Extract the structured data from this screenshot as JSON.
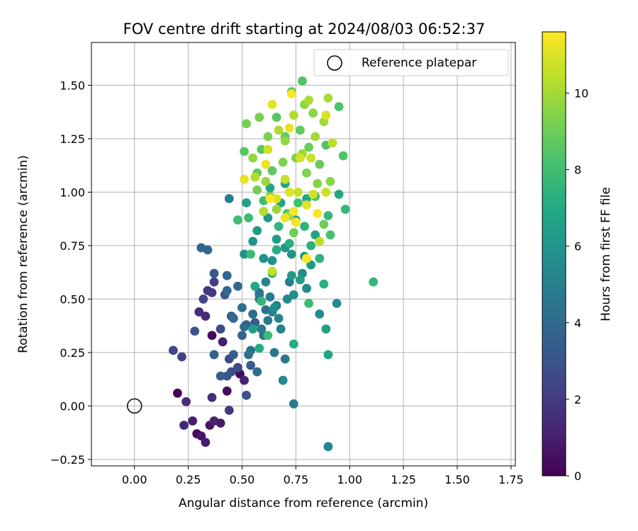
{
  "chart_data": {
    "type": "scatter",
    "title": "FOV centre drift starting at 2024/08/03 06:52:37",
    "xlabel": "Angular distance from reference (arcmin)",
    "ylabel": "Rotation from reference (arcmin)",
    "xlim": [
      -0.2,
      1.77
    ],
    "ylim": [
      -0.28,
      1.7
    ],
    "xticks": [
      "0.00",
      "0.25",
      "0.50",
      "0.75",
      "1.00",
      "1.25",
      "1.50",
      "1.75"
    ],
    "yticks": [
      "−0.25",
      "0.00",
      "0.25",
      "0.50",
      "0.75",
      "1.00",
      "1.25",
      "1.50"
    ],
    "grid": true,
    "legend": {
      "placement": "upper-right",
      "entries": [
        "Reference platepar"
      ]
    },
    "reference_point": {
      "x": 0.0,
      "y": 0.0,
      "label": "Reference platepar"
    },
    "colorbar": {
      "label": "Hours from first FF file",
      "min": 0,
      "max": 11.6,
      "ticks": [
        "0",
        "2",
        "4",
        "6",
        "8",
        "10"
      ],
      "colormap": "viridis"
    },
    "points": [
      {
        "x": 0.2,
        "y": 0.06,
        "h": 0.1
      },
      {
        "x": 0.29,
        "y": -0.13,
        "h": 0.3
      },
      {
        "x": 0.36,
        "y": 0.33,
        "h": 0.2
      },
      {
        "x": 0.43,
        "y": 0.07,
        "h": 0.4
      },
      {
        "x": 0.49,
        "y": 0.15,
        "h": 0.3
      },
      {
        "x": 0.35,
        "y": -0.09,
        "h": 0.6
      },
      {
        "x": 0.31,
        "y": -0.14,
        "h": 0.7
      },
      {
        "x": 0.4,
        "y": -0.08,
        "h": 0.8
      },
      {
        "x": 0.33,
        "y": -0.17,
        "h": 0.9
      },
      {
        "x": 0.27,
        "y": -0.07,
        "h": 1.0
      },
      {
        "x": 0.41,
        "y": 0.3,
        "h": 1.0
      },
      {
        "x": 0.37,
        "y": -0.07,
        "h": 1.1
      },
      {
        "x": 0.51,
        "y": 0.12,
        "h": 1.2
      },
      {
        "x": 0.23,
        "y": -0.09,
        "h": 1.3
      },
      {
        "x": 0.24,
        "y": 0.02,
        "h": 1.4
      },
      {
        "x": 0.33,
        "y": 0.42,
        "h": 1.4
      },
      {
        "x": 0.3,
        "y": 0.44,
        "h": 1.5
      },
      {
        "x": 0.36,
        "y": 0.04,
        "h": 1.6
      },
      {
        "x": 0.44,
        "y": -0.02,
        "h": 1.8
      },
      {
        "x": 0.34,
        "y": 0.54,
        "h": 1.8
      },
      {
        "x": 0.36,
        "y": 0.53,
        "h": 2.0
      },
      {
        "x": 0.37,
        "y": 0.58,
        "h": 2.1
      },
      {
        "x": 0.22,
        "y": 0.23,
        "h": 2.3
      },
      {
        "x": 0.18,
        "y": 0.26,
        "h": 2.4
      },
      {
        "x": 0.32,
        "y": 0.5,
        "h": 2.5
      },
      {
        "x": 0.4,
        "y": 0.36,
        "h": 2.6
      },
      {
        "x": 0.44,
        "y": 0.22,
        "h": 2.7
      },
      {
        "x": 0.48,
        "y": 0.18,
        "h": 2.8
      },
      {
        "x": 0.45,
        "y": 0.16,
        "h": 2.8
      },
      {
        "x": 0.52,
        "y": 0.05,
        "h": 2.9
      },
      {
        "x": 0.43,
        "y": 0.14,
        "h": 3.0
      },
      {
        "x": 0.28,
        "y": 0.35,
        "h": 3.0
      },
      {
        "x": 0.37,
        "y": 0.62,
        "h": 3.1
      },
      {
        "x": 0.42,
        "y": 0.52,
        "h": 3.2
      },
      {
        "x": 0.54,
        "y": 0.19,
        "h": 3.3
      },
      {
        "x": 0.56,
        "y": 0.39,
        "h": 3.4
      },
      {
        "x": 0.4,
        "y": 0.14,
        "h": 3.4
      },
      {
        "x": 0.45,
        "y": 0.42,
        "h": 3.5
      },
      {
        "x": 0.46,
        "y": 0.24,
        "h": 3.5
      },
      {
        "x": 0.5,
        "y": 0.33,
        "h": 3.6
      },
      {
        "x": 0.37,
        "y": 0.24,
        "h": 3.6
      },
      {
        "x": 0.52,
        "y": 0.38,
        "h": 3.7
      },
      {
        "x": 0.31,
        "y": 0.74,
        "h": 3.7
      },
      {
        "x": 0.34,
        "y": 0.73,
        "h": 3.8
      },
      {
        "x": 0.43,
        "y": 0.61,
        "h": 3.8
      },
      {
        "x": 0.48,
        "y": 0.56,
        "h": 3.9
      },
      {
        "x": 0.43,
        "y": 0.54,
        "h": 3.9
      },
      {
        "x": 0.46,
        "y": 0.41,
        "h": 4.0
      },
      {
        "x": 0.51,
        "y": 0.37,
        "h": 4.0
      },
      {
        "x": 0.53,
        "y": 0.24,
        "h": 4.1
      },
      {
        "x": 0.57,
        "y": 0.16,
        "h": 4.1
      },
      {
        "x": 0.6,
        "y": 0.33,
        "h": 4.2
      },
      {
        "x": 0.55,
        "y": 0.43,
        "h": 4.2
      },
      {
        "x": 0.58,
        "y": 0.52,
        "h": 4.3
      },
      {
        "x": 0.61,
        "y": 0.45,
        "h": 4.3
      },
      {
        "x": 0.5,
        "y": 0.46,
        "h": 4.4
      },
      {
        "x": 0.54,
        "y": 0.26,
        "h": 4.4
      },
      {
        "x": 0.58,
        "y": 0.53,
        "h": 4.5
      },
      {
        "x": 0.65,
        "y": 0.25,
        "h": 4.5
      },
      {
        "x": 0.7,
        "y": 0.22,
        "h": 4.6
      },
      {
        "x": 0.62,
        "y": 0.4,
        "h": 4.6
      },
      {
        "x": 0.66,
        "y": 0.47,
        "h": 4.7
      },
      {
        "x": 0.59,
        "y": 0.36,
        "h": 4.7
      },
      {
        "x": 0.63,
        "y": 0.51,
        "h": 4.8
      },
      {
        "x": 0.72,
        "y": 0.58,
        "h": 4.8
      },
      {
        "x": 0.74,
        "y": 0.01,
        "h": 4.9
      },
      {
        "x": 0.44,
        "y": 0.97,
        "h": 4.9
      },
      {
        "x": 0.58,
        "y": 0.5,
        "h": 5.0
      },
      {
        "x": 0.64,
        "y": 0.44,
        "h": 5.0
      },
      {
        "x": 0.68,
        "y": 0.36,
        "h": 5.1
      },
      {
        "x": 0.67,
        "y": 0.41,
        "h": 5.2
      },
      {
        "x": 0.61,
        "y": 0.58,
        "h": 5.2
      },
      {
        "x": 0.9,
        "y": -0.19,
        "h": 5.3
      },
      {
        "x": 0.69,
        "y": 0.12,
        "h": 5.4
      },
      {
        "x": 0.71,
        "y": 0.5,
        "h": 5.4
      },
      {
        "x": 0.8,
        "y": 0.55,
        "h": 5.5
      },
      {
        "x": 0.86,
        "y": 0.43,
        "h": 5.5
      },
      {
        "x": 0.94,
        "y": 0.48,
        "h": 5.6
      },
      {
        "x": 0.78,
        "y": 0.62,
        "h": 5.6
      },
      {
        "x": 0.74,
        "y": 0.52,
        "h": 5.7
      },
      {
        "x": 0.65,
        "y": 0.46,
        "h": 5.7
      },
      {
        "x": 0.55,
        "y": 0.77,
        "h": 5.8
      },
      {
        "x": 0.51,
        "y": 0.71,
        "h": 5.8
      },
      {
        "x": 0.6,
        "y": 0.69,
        "h": 5.9
      },
      {
        "x": 0.64,
        "y": 0.68,
        "h": 5.9
      },
      {
        "x": 0.73,
        "y": 0.71,
        "h": 6.0
      },
      {
        "x": 0.79,
        "y": 0.7,
        "h": 6.0
      },
      {
        "x": 0.82,
        "y": 0.66,
        "h": 6.1
      },
      {
        "x": 0.7,
        "y": 0.74,
        "h": 6.1
      },
      {
        "x": 0.57,
        "y": 0.82,
        "h": 6.2
      },
      {
        "x": 0.62,
        "y": 0.88,
        "h": 6.2
      },
      {
        "x": 0.66,
        "y": 0.78,
        "h": 6.3
      },
      {
        "x": 0.73,
        "y": 0.61,
        "h": 6.3
      },
      {
        "x": 0.77,
        "y": 0.59,
        "h": 6.4
      },
      {
        "x": 0.55,
        "y": 0.36,
        "h": 6.4
      },
      {
        "x": 0.89,
        "y": 0.36,
        "h": 6.5
      },
      {
        "x": 0.52,
        "y": 0.95,
        "h": 6.5
      },
      {
        "x": 0.6,
        "y": 0.91,
        "h": 6.6
      },
      {
        "x": 0.68,
        "y": 0.95,
        "h": 6.6
      },
      {
        "x": 0.75,
        "y": 0.87,
        "h": 6.7
      },
      {
        "x": 0.84,
        "y": 0.8,
        "h": 6.7
      },
      {
        "x": 0.9,
        "y": 0.24,
        "h": 6.8
      },
      {
        "x": 0.63,
        "y": 1.02,
        "h": 6.8
      },
      {
        "x": 0.7,
        "y": 1.04,
        "h": 6.9
      },
      {
        "x": 0.8,
        "y": 0.97,
        "h": 6.9
      },
      {
        "x": 0.95,
        "y": 0.99,
        "h": 7.0
      },
      {
        "x": 0.56,
        "y": 0.56,
        "h": 7.0
      },
      {
        "x": 0.74,
        "y": 0.29,
        "h": 7.1
      },
      {
        "x": 0.58,
        "y": 0.27,
        "h": 7.1
      },
      {
        "x": 0.72,
        "y": 0.76,
        "h": 7.2
      },
      {
        "x": 0.66,
        "y": 0.73,
        "h": 7.2
      },
      {
        "x": 0.82,
        "y": 0.75,
        "h": 7.3
      },
      {
        "x": 0.88,
        "y": 0.57,
        "h": 7.3
      },
      {
        "x": 0.86,
        "y": 0.69,
        "h": 7.4
      },
      {
        "x": 0.79,
        "y": 0.84,
        "h": 7.4
      },
      {
        "x": 0.67,
        "y": 0.84,
        "h": 7.5
      },
      {
        "x": 0.64,
        "y": 0.62,
        "h": 7.5
      },
      {
        "x": 0.59,
        "y": 0.49,
        "h": 7.6
      },
      {
        "x": 1.11,
        "y": 0.58,
        "h": 7.6
      },
      {
        "x": 0.98,
        "y": 0.92,
        "h": 7.7
      },
      {
        "x": 0.9,
        "y": 0.89,
        "h": 7.7
      },
      {
        "x": 0.81,
        "y": 0.48,
        "h": 7.8
      },
      {
        "x": 0.54,
        "y": 0.71,
        "h": 7.8
      },
      {
        "x": 0.62,
        "y": 0.33,
        "h": 7.9
      },
      {
        "x": 0.53,
        "y": 0.88,
        "h": 7.9
      },
      {
        "x": 0.6,
        "y": 0.96,
        "h": 8.0
      },
      {
        "x": 0.48,
        "y": 0.87,
        "h": 8.0
      },
      {
        "x": 0.71,
        "y": 0.9,
        "h": 8.1
      },
      {
        "x": 0.76,
        "y": 0.95,
        "h": 8.1
      },
      {
        "x": 0.84,
        "y": 0.98,
        "h": 8.2
      },
      {
        "x": 0.91,
        "y": 0.8,
        "h": 8.2
      },
      {
        "x": 0.95,
        "y": 1.4,
        "h": 8.3
      },
      {
        "x": 0.97,
        "y": 1.17,
        "h": 8.3
      },
      {
        "x": 0.89,
        "y": 1.22,
        "h": 8.4
      },
      {
        "x": 0.78,
        "y": 1.52,
        "h": 8.4
      },
      {
        "x": 0.73,
        "y": 1.47,
        "h": 8.5
      },
      {
        "x": 0.66,
        "y": 1.35,
        "h": 8.5
      },
      {
        "x": 0.59,
        "y": 1.2,
        "h": 8.6
      },
      {
        "x": 0.51,
        "y": 1.19,
        "h": 8.6
      },
      {
        "x": 0.57,
        "y": 1.09,
        "h": 8.7
      },
      {
        "x": 0.64,
        "y": 1.1,
        "h": 8.7
      },
      {
        "x": 0.7,
        "y": 1.26,
        "h": 8.8
      },
      {
        "x": 0.77,
        "y": 1.29,
        "h": 8.8
      },
      {
        "x": 0.81,
        "y": 1.21,
        "h": 8.9
      },
      {
        "x": 0.86,
        "y": 1.13,
        "h": 8.9
      },
      {
        "x": 0.88,
        "y": 0.85,
        "h": 9.0
      },
      {
        "x": 0.74,
        "y": 0.81,
        "h": 9.0
      },
      {
        "x": 0.63,
        "y": 0.98,
        "h": 9.1
      },
      {
        "x": 0.57,
        "y": 1.01,
        "h": 9.1
      },
      {
        "x": 0.52,
        "y": 1.32,
        "h": 9.2
      },
      {
        "x": 0.58,
        "y": 1.35,
        "h": 9.2
      },
      {
        "x": 0.62,
        "y": 1.26,
        "h": 9.3
      },
      {
        "x": 0.69,
        "y": 1.14,
        "h": 9.3
      },
      {
        "x": 0.75,
        "y": 1.16,
        "h": 9.4
      },
      {
        "x": 0.8,
        "y": 1.09,
        "h": 9.4
      },
      {
        "x": 0.85,
        "y": 1.04,
        "h": 9.5
      },
      {
        "x": 0.91,
        "y": 1.05,
        "h": 9.5
      },
      {
        "x": 0.83,
        "y": 1.37,
        "h": 9.6
      },
      {
        "x": 0.79,
        "y": 1.41,
        "h": 9.6
      },
      {
        "x": 0.7,
        "y": 1.24,
        "h": 9.7
      },
      {
        "x": 0.55,
        "y": 1.16,
        "h": 9.7
      },
      {
        "x": 0.61,
        "y": 1.05,
        "h": 9.8
      },
      {
        "x": 0.66,
        "y": 0.92,
        "h": 9.8
      },
      {
        "x": 0.72,
        "y": 0.89,
        "h": 9.9
      },
      {
        "x": 0.78,
        "y": 1.18,
        "h": 9.9
      },
      {
        "x": 0.84,
        "y": 1.26,
        "h": 10.0
      },
      {
        "x": 0.88,
        "y": 1.33,
        "h": 10.0
      },
      {
        "x": 0.9,
        "y": 1.44,
        "h": 10.1
      },
      {
        "x": 0.81,
        "y": 1.43,
        "h": 10.1
      },
      {
        "x": 0.74,
        "y": 1.36,
        "h": 10.2
      },
      {
        "x": 0.67,
        "y": 1.29,
        "h": 10.2
      },
      {
        "x": 0.56,
        "y": 1.07,
        "h": 10.3
      },
      {
        "x": 0.6,
        "y": 0.91,
        "h": 10.3
      },
      {
        "x": 0.92,
        "y": 1.23,
        "h": 10.4
      },
      {
        "x": 0.86,
        "y": 0.77,
        "h": 10.4
      },
      {
        "x": 0.8,
        "y": 0.69,
        "h": 10.5
      },
      {
        "x": 0.64,
        "y": 0.63,
        "h": 10.5
      },
      {
        "x": 0.76,
        "y": 1.0,
        "h": 10.6
      },
      {
        "x": 0.7,
        "y": 1.06,
        "h": 10.6
      },
      {
        "x": 0.82,
        "y": 1.16,
        "h": 10.7
      },
      {
        "x": 0.89,
        "y": 1.0,
        "h": 10.7
      },
      {
        "x": 0.62,
        "y": 1.2,
        "h": 10.8
      },
      {
        "x": 0.83,
        "y": 0.99,
        "h": 10.8
      },
      {
        "x": 0.89,
        "y": 1.36,
        "h": 10.9
      },
      {
        "x": 0.77,
        "y": 1.16,
        "h": 10.9
      },
      {
        "x": 0.72,
        "y": 1.0,
        "h": 11.0
      },
      {
        "x": 0.66,
        "y": 0.97,
        "h": 11.0
      },
      {
        "x": 0.8,
        "y": 0.94,
        "h": 11.1
      },
      {
        "x": 0.64,
        "y": 1.41,
        "h": 11.1
      },
      {
        "x": 0.72,
        "y": 1.3,
        "h": 11.2
      },
      {
        "x": 0.51,
        "y": 1.06,
        "h": 11.2
      },
      {
        "x": 0.61,
        "y": 1.13,
        "h": 11.3
      },
      {
        "x": 0.7,
        "y": 0.88,
        "h": 11.3
      },
      {
        "x": 0.75,
        "y": 0.86,
        "h": 11.4
      },
      {
        "x": 0.74,
        "y": 0.91,
        "h": 11.4
      },
      {
        "x": 0.8,
        "y": 0.69,
        "h": 11.5
      },
      {
        "x": 0.85,
        "y": 0.9,
        "h": 11.5
      },
      {
        "x": 0.73,
        "y": 1.46,
        "h": 11.6
      },
      {
        "x": 0.63,
        "y": 0.97,
        "h": 11.6
      }
    ]
  }
}
